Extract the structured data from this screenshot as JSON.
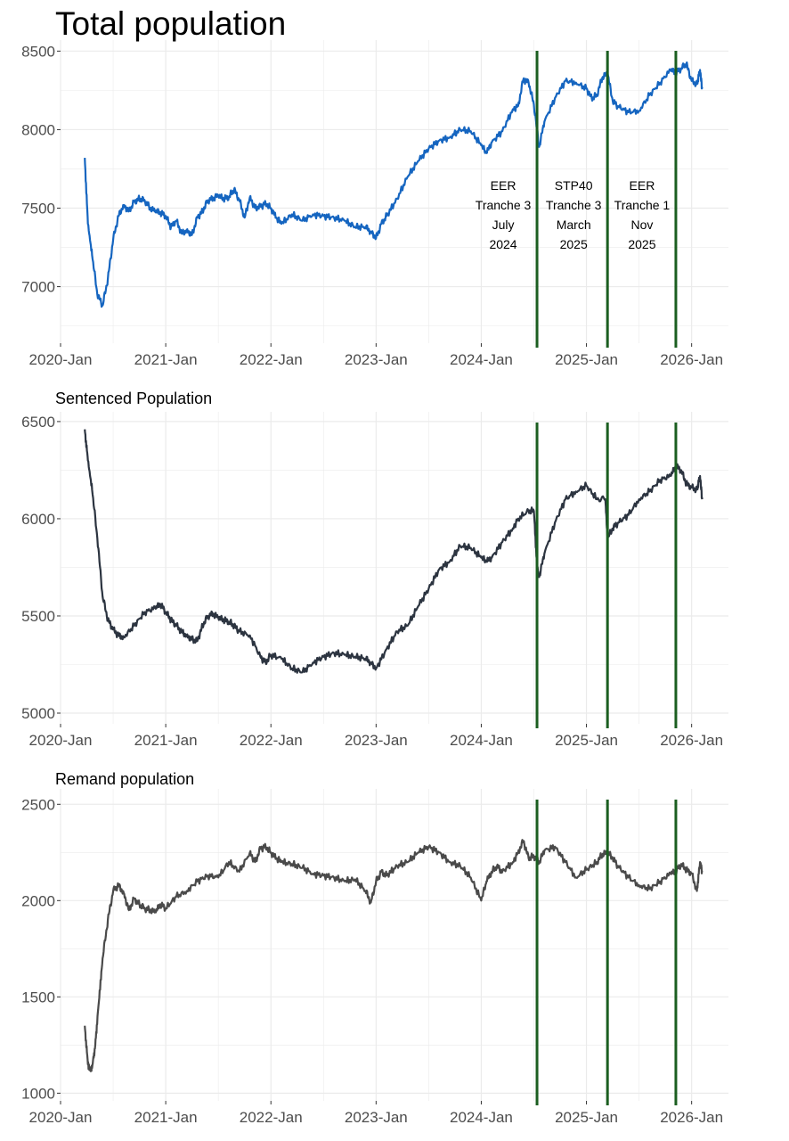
{
  "title": "Total population",
  "colors": {
    "total": "#1565c0",
    "sentenced": "#2c3440",
    "remand": "#4a4a4a",
    "event_line": "#1b5e20",
    "grid": "#ebebeb"
  },
  "chart_data": [
    {
      "type": "line",
      "name": "total",
      "title": "Total population",
      "xlabel": "",
      "ylabel": "",
      "x_ticks": [
        "2020-Jan",
        "2021-Jan",
        "2022-Jan",
        "2023-Jan",
        "2024-Jan",
        "2025-Jan",
        "2026-Jan"
      ],
      "x_range": [
        2020.0,
        2026.35
      ],
      "y_ticks": [
        7000,
        7500,
        8000,
        8500
      ],
      "ylim": [
        6640,
        8570
      ],
      "series": [
        {
          "name": "Total population",
          "x": [
            2020.23,
            2020.26,
            2020.3,
            2020.35,
            2020.4,
            2020.45,
            2020.5,
            2020.55,
            2020.6,
            2020.65,
            2020.7,
            2020.75,
            2020.8,
            2020.85,
            2020.9,
            2020.95,
            2021.0,
            2021.05,
            2021.1,
            2021.15,
            2021.2,
            2021.25,
            2021.3,
            2021.35,
            2021.4,
            2021.45,
            2021.5,
            2021.55,
            2021.6,
            2021.65,
            2021.7,
            2021.75,
            2021.8,
            2021.85,
            2021.9,
            2021.95,
            2022.0,
            2022.05,
            2022.1,
            2022.2,
            2022.3,
            2022.4,
            2022.5,
            2022.6,
            2022.7,
            2022.8,
            2022.9,
            2022.95,
            2023.0,
            2023.05,
            2023.1,
            2023.2,
            2023.3,
            2023.4,
            2023.5,
            2023.6,
            2023.7,
            2023.8,
            2023.9,
            2024.0,
            2024.05,
            2024.1,
            2024.2,
            2024.3,
            2024.35,
            2024.4,
            2024.45,
            2024.5,
            2024.55,
            2024.6,
            2024.7,
            2024.8,
            2024.9,
            2025.0,
            2025.05,
            2025.1,
            2025.15,
            2025.2,
            2025.25,
            2025.3,
            2025.4,
            2025.5,
            2025.6,
            2025.7,
            2025.8,
            2025.85,
            2025.9,
            2025.95,
            2026.0,
            2026.05,
            2026.08,
            2026.1
          ],
          "y": [
            7820,
            7400,
            7200,
            6950,
            6880,
            7050,
            7300,
            7450,
            7520,
            7480,
            7540,
            7560,
            7550,
            7500,
            7480,
            7470,
            7450,
            7380,
            7420,
            7340,
            7360,
            7330,
            7440,
            7480,
            7550,
            7560,
            7580,
            7560,
            7570,
            7620,
            7550,
            7440,
            7570,
            7500,
            7510,
            7530,
            7500,
            7440,
            7400,
            7460,
            7420,
            7460,
            7450,
            7440,
            7420,
            7380,
            7380,
            7350,
            7310,
            7400,
            7450,
            7560,
            7700,
            7800,
            7880,
            7930,
            7950,
            8000,
            7990,
            7900,
            7850,
            7920,
            7990,
            8130,
            8150,
            8320,
            8300,
            8160,
            7890,
            8050,
            8200,
            8310,
            8300,
            8260,
            8200,
            8220,
            8330,
            8360,
            8180,
            8150,
            8110,
            8120,
            8220,
            8300,
            8380,
            8360,
            8390,
            8420,
            8310,
            8290,
            8380,
            8260
          ]
        }
      ],
      "events": [
        {
          "x": 2024.53,
          "label_lines": [
            "EER",
            "Tranche 3",
            "July",
            "2024"
          ]
        },
        {
          "x": 2025.2,
          "label_lines": [
            "STP40",
            "Tranche 3",
            "March",
            "2025"
          ]
        },
        {
          "x": 2025.85,
          "label_lines": [
            "EER",
            "Tranche 1",
            "Nov",
            "2025"
          ]
        }
      ]
    },
    {
      "type": "line",
      "name": "sentenced",
      "title": "Sentenced Population",
      "xlabel": "",
      "ylabel": "",
      "x_ticks": [
        "2020-Jan",
        "2021-Jan",
        "2022-Jan",
        "2023-Jan",
        "2024-Jan",
        "2025-Jan",
        "2026-Jan"
      ],
      "x_range": [
        2020.0,
        2026.35
      ],
      "y_ticks": [
        5000,
        5500,
        6000,
        6500
      ],
      "ylim": [
        4945,
        6550
      ],
      "series": [
        {
          "name": "Sentenced Population",
          "x": [
            2020.23,
            2020.26,
            2020.3,
            2020.35,
            2020.4,
            2020.45,
            2020.5,
            2020.55,
            2020.6,
            2020.7,
            2020.8,
            2020.9,
            2020.95,
            2021.0,
            2021.05,
            2021.1,
            2021.15,
            2021.2,
            2021.25,
            2021.3,
            2021.35,
            2021.4,
            2021.45,
            2021.5,
            2021.55,
            2021.6,
            2021.65,
            2021.7,
            2021.8,
            2021.9,
            2021.95,
            2022.0,
            2022.1,
            2022.2,
            2022.3,
            2022.4,
            2022.5,
            2022.6,
            2022.7,
            2022.8,
            2022.9,
            2022.95,
            2023.0,
            2023.1,
            2023.2,
            2023.3,
            2023.4,
            2023.5,
            2023.6,
            2023.7,
            2023.8,
            2023.9,
            2024.0,
            2024.05,
            2024.1,
            2024.2,
            2024.3,
            2024.35,
            2024.45,
            2024.5,
            2024.53,
            2024.55,
            2024.6,
            2024.7,
            2024.8,
            2024.9,
            2025.0,
            2025.1,
            2025.18,
            2025.2,
            2025.25,
            2025.3,
            2025.4,
            2025.5,
            2025.6,
            2025.7,
            2025.8,
            2025.85,
            2025.9,
            2025.95,
            2026.0,
            2026.05,
            2026.08,
            2026.1
          ],
          "y": [
            6460,
            6300,
            6150,
            5900,
            5600,
            5480,
            5430,
            5400,
            5390,
            5450,
            5520,
            5540,
            5560,
            5520,
            5480,
            5450,
            5420,
            5400,
            5380,
            5370,
            5450,
            5500,
            5510,
            5490,
            5480,
            5470,
            5450,
            5420,
            5400,
            5290,
            5260,
            5300,
            5280,
            5230,
            5210,
            5260,
            5290,
            5310,
            5300,
            5290,
            5280,
            5260,
            5230,
            5330,
            5420,
            5450,
            5550,
            5640,
            5740,
            5780,
            5860,
            5850,
            5800,
            5780,
            5800,
            5880,
            5950,
            6000,
            6040,
            6040,
            5760,
            5700,
            5820,
            5980,
            6100,
            6140,
            6170,
            6100,
            6100,
            5900,
            5950,
            5980,
            6020,
            6100,
            6140,
            6200,
            6220,
            6270,
            6250,
            6180,
            6160,
            6150,
            6220,
            6100
          ]
        }
      ],
      "events": [
        {
          "x": 2024.53
        },
        {
          "x": 2025.2
        },
        {
          "x": 2025.85
        }
      ]
    },
    {
      "type": "line",
      "name": "remand",
      "title": "Remand population",
      "xlabel": "",
      "ylabel": "",
      "x_ticks": [
        "2020-Jan",
        "2021-Jan",
        "2022-Jan",
        "2023-Jan",
        "2024-Jan",
        "2025-Jan",
        "2026-Jan"
      ],
      "x_range": [
        2020.0,
        2026.35
      ],
      "y_ticks": [
        1000,
        1500,
        2000,
        2500
      ],
      "ylim": [
        960,
        2580
      ],
      "series": [
        {
          "name": "Remand population",
          "x": [
            2020.23,
            2020.26,
            2020.28,
            2020.3,
            2020.33,
            2020.36,
            2020.4,
            2020.45,
            2020.5,
            2020.55,
            2020.6,
            2020.65,
            2020.7,
            2020.75,
            2020.8,
            2020.85,
            2020.9,
            2020.95,
            2021.0,
            2021.1,
            2021.2,
            2021.3,
            2021.4,
            2021.5,
            2021.6,
            2021.7,
            2021.8,
            2021.85,
            2021.9,
            2021.95,
            2022.0,
            2022.05,
            2022.1,
            2022.2,
            2022.3,
            2022.4,
            2022.5,
            2022.6,
            2022.7,
            2022.8,
            2022.9,
            2022.95,
            2023.0,
            2023.05,
            2023.1,
            2023.2,
            2023.3,
            2023.4,
            2023.5,
            2023.6,
            2023.7,
            2023.8,
            2023.9,
            2024.0,
            2024.05,
            2024.1,
            2024.15,
            2024.2,
            2024.3,
            2024.35,
            2024.4,
            2024.45,
            2024.5,
            2024.55,
            2024.6,
            2024.7,
            2024.8,
            2024.9,
            2025.0,
            2025.1,
            2025.15,
            2025.2,
            2025.25,
            2025.3,
            2025.4,
            2025.5,
            2025.6,
            2025.7,
            2025.8,
            2025.85,
            2025.9,
            2025.95,
            2026.0,
            2026.05,
            2026.08,
            2026.1
          ],
          "y": [
            1350,
            1150,
            1120,
            1130,
            1250,
            1450,
            1700,
            1900,
            2050,
            2080,
            2040,
            1950,
            2010,
            1980,
            1960,
            1950,
            1940,
            1980,
            1960,
            2020,
            2050,
            2100,
            2130,
            2120,
            2200,
            2150,
            2250,
            2200,
            2270,
            2280,
            2250,
            2220,
            2200,
            2190,
            2170,
            2140,
            2130,
            2120,
            2100,
            2110,
            2050,
            1990,
            2100,
            2150,
            2130,
            2180,
            2200,
            2250,
            2280,
            2250,
            2200,
            2180,
            2120,
            2000,
            2100,
            2150,
            2180,
            2150,
            2200,
            2250,
            2310,
            2220,
            2230,
            2200,
            2260,
            2280,
            2200,
            2120,
            2160,
            2200,
            2240,
            2250,
            2220,
            2180,
            2120,
            2080,
            2060,
            2100,
            2140,
            2150,
            2190,
            2160,
            2140,
            2050,
            2200,
            2150
          ]
        }
      ],
      "events": [
        {
          "x": 2024.53
        },
        {
          "x": 2025.2
        },
        {
          "x": 2025.85
        }
      ]
    }
  ],
  "panel_titles": {
    "sentenced": "Sentenced Population",
    "remand": "Remand population"
  }
}
